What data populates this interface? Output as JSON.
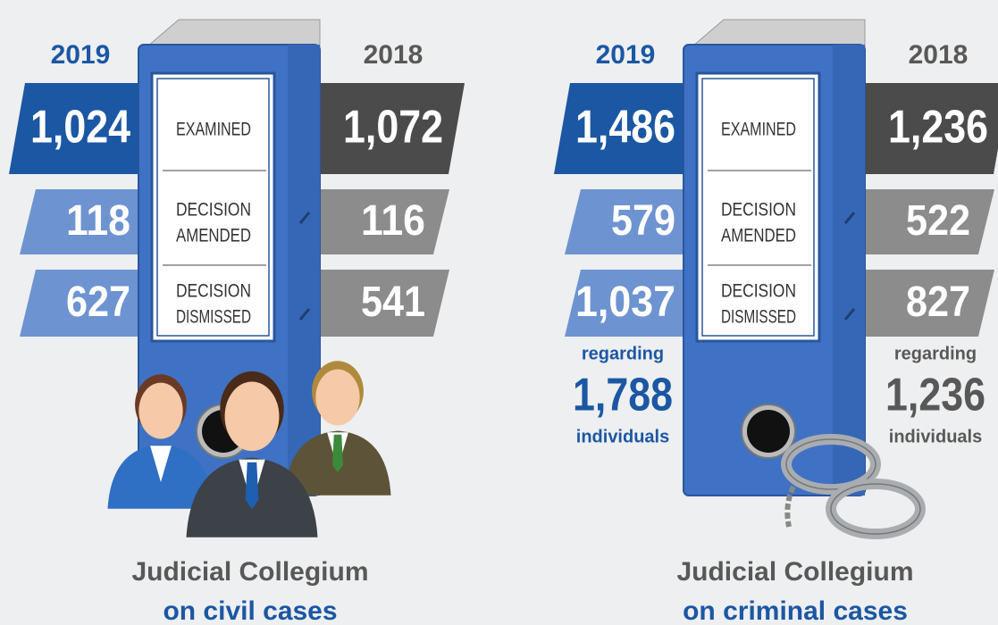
{
  "panels": [
    {
      "year_left": "2019",
      "year_right": "2018",
      "rows": [
        {
          "left": "1,024",
          "label": [
            "EXAMINED"
          ],
          "right": "1,072"
        },
        {
          "left": "118",
          "label": [
            "DECISION",
            "AMENDED"
          ],
          "right": "116"
        },
        {
          "left": "627",
          "label": [
            "DECISION",
            "DISMISSED"
          ],
          "right": "541"
        }
      ],
      "title": [
        "Judicial Collegium",
        "on civil cases"
      ]
    },
    {
      "year_left": "2019",
      "year_right": "2018",
      "rows": [
        {
          "left": "1,486",
          "label": [
            "EXAMINED"
          ],
          "right": "1,236"
        },
        {
          "left": "579",
          "label": [
            "DECISION",
            "AMENDED"
          ],
          "right": "522"
        },
        {
          "left": "1,037",
          "label": [
            "DECISION",
            "DISMISSED"
          ],
          "right": "827"
        }
      ],
      "note_left": {
        "prefix": "regarding",
        "value": "1,788",
        "suffix": "individuals"
      },
      "note_right": {
        "prefix": "regarding",
        "value": "1,236",
        "suffix": "individuals"
      },
      "title": [
        "Judicial Collegium",
        "on criminal cases"
      ]
    }
  ]
}
